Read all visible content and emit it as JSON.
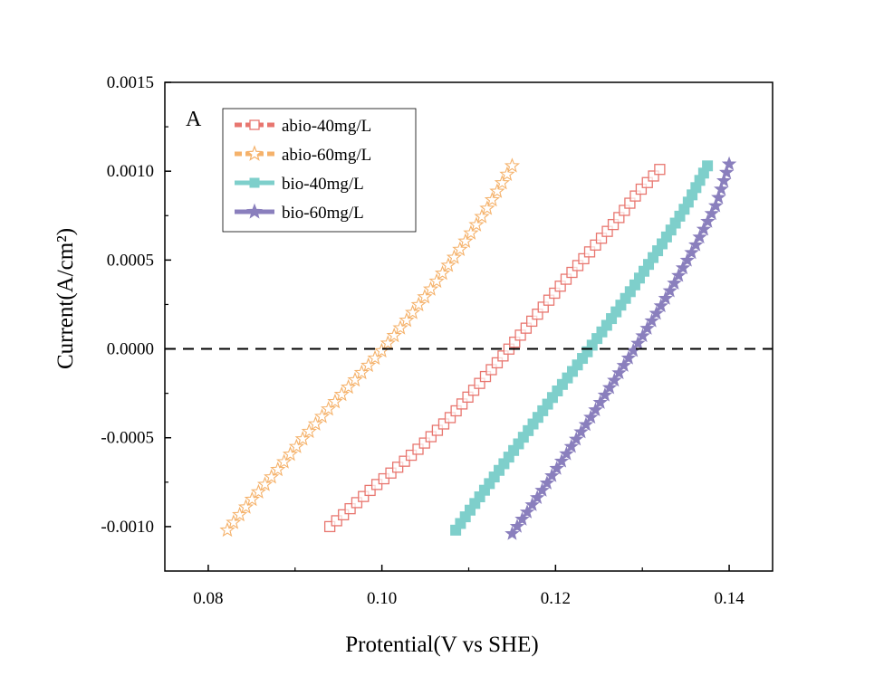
{
  "chart_data": {
    "type": "scatter",
    "panel_label": "A",
    "xlabel": "Protential(V vs SHE)",
    "ylabel": "Current(A/cm²)",
    "xlim": [
      0.075,
      0.145
    ],
    "ylim": [
      -0.00125,
      0.0015
    ],
    "xticks": [
      0.08,
      0.1,
      0.12,
      0.14
    ],
    "xtick_labels": [
      "0.08",
      "0.10",
      "0.12",
      "0.14"
    ],
    "yticks": [
      -0.001,
      -0.0005,
      0.0,
      0.0005,
      0.001,
      0.0015
    ],
    "ytick_labels": [
      "-0.0010",
      "-0.0005",
      "0.0000",
      "0.0005",
      "0.0010",
      "0.0015"
    ],
    "reference_line": {
      "y": 0.0,
      "style": "dashed"
    },
    "legend_position": "top-left",
    "series": [
      {
        "name": "abio-40mg/L",
        "marker": "square-open",
        "color": "#e8766f",
        "x": [
          0.094,
          0.0952,
          0.097,
          0.099,
          0.1015,
          0.1045,
          0.108,
          0.1115,
          0.115,
          0.118,
          0.121,
          0.124,
          0.127,
          0.1295,
          0.132
        ],
        "y": [
          -0.001,
          -0.00095,
          -0.00087,
          -0.00078,
          -0.00068,
          -0.00055,
          -0.00038,
          -0.00018,
          2e-05,
          0.0002,
          0.00038,
          0.00055,
          0.00072,
          0.00088,
          0.00101
        ]
      },
      {
        "name": "abio-60mg/L",
        "marker": "star-open",
        "color": "#f5b26b",
        "x": [
          0.0822,
          0.085,
          0.088,
          0.091,
          0.094,
          0.097,
          0.1,
          0.103,
          0.106,
          0.109,
          0.112,
          0.115
        ],
        "y": [
          -0.00102,
          -0.00085,
          -0.00068,
          -0.0005,
          -0.00033,
          -0.00017,
          -1e-05,
          0.00017,
          0.00036,
          0.00056,
          0.00078,
          0.00103
        ]
      },
      {
        "name": "bio-40mg/L",
        "marker": "square-filled",
        "color": "#7ecfcb",
        "x": [
          0.1085,
          0.111,
          0.114,
          0.117,
          0.12,
          0.123,
          0.126,
          0.129,
          0.132,
          0.135,
          0.1375
        ],
        "y": [
          -0.00102,
          -0.00085,
          -0.00065,
          -0.00045,
          -0.00025,
          -6e-05,
          0.00014,
          0.00035,
          0.00057,
          0.0008,
          0.00103
        ]
      },
      {
        "name": "bio-60mg/L",
        "marker": "star-filled",
        "color": "#8a7fbd",
        "x": [
          0.115,
          0.118,
          0.121,
          0.124,
          0.127,
          0.13,
          0.133,
          0.136,
          0.1385,
          0.14
        ],
        "y": [
          -0.00104,
          -0.00083,
          -0.00061,
          -0.00039,
          -0.00016,
          7e-05,
          0.00031,
          0.00057,
          0.00081,
          0.00104
        ]
      }
    ]
  }
}
